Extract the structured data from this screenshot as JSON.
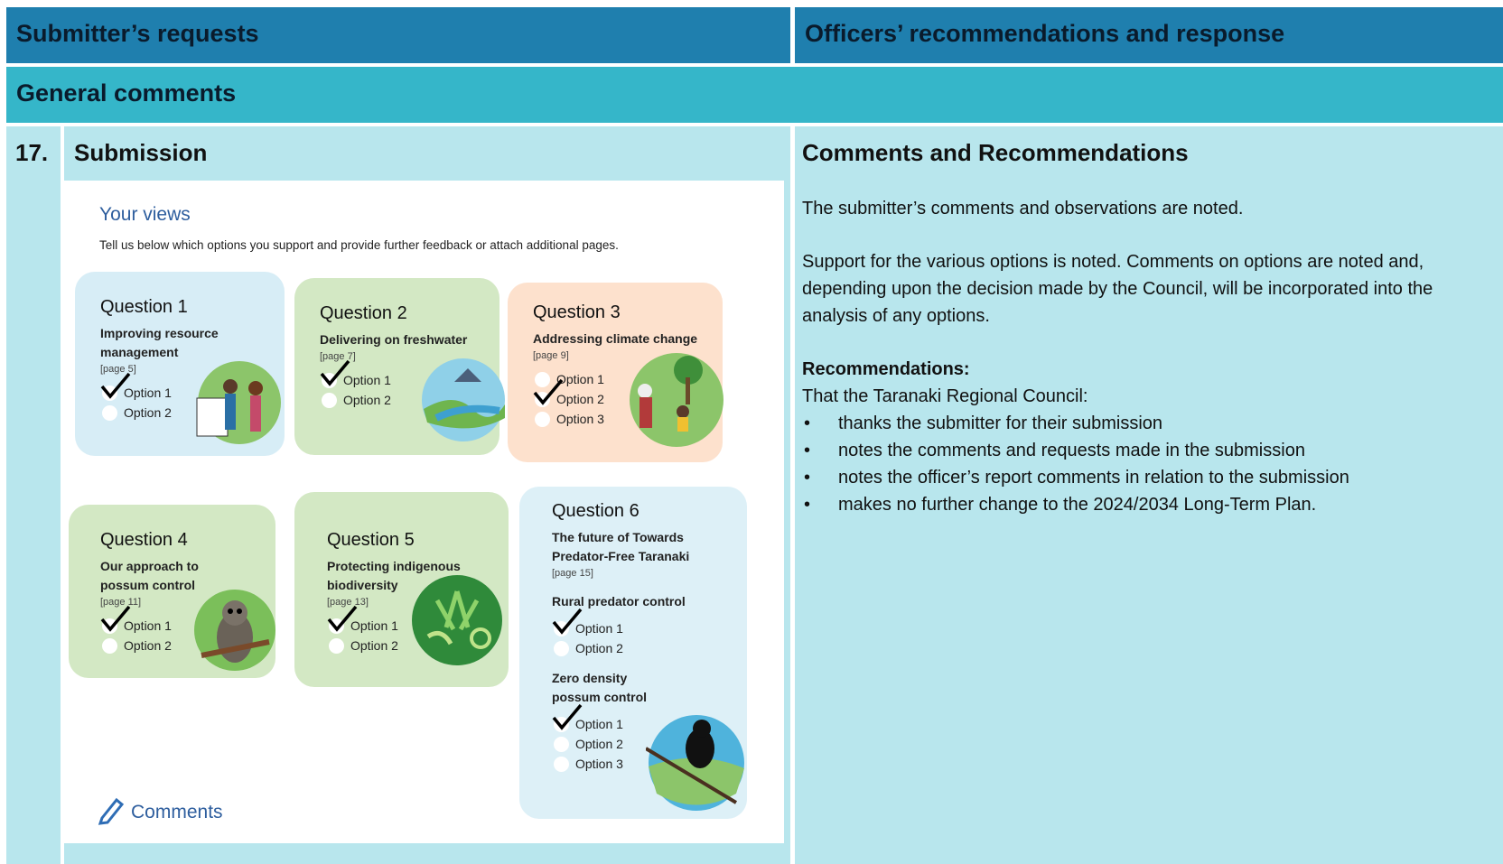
{
  "header": {
    "left": "Submitter’s requests",
    "right": "Officers’ recommendations and response"
  },
  "section": "General comments",
  "row": {
    "number": "17.",
    "left_title": "Submission",
    "form": {
      "title": "Your views",
      "intro": "Tell us below which options you support and provide further feedback or attach additional pages.",
      "questions": [
        {
          "title": "Question 1",
          "subtitle": "Improving resource management",
          "page": "[page 5]",
          "options": [
            "Option 1",
            "Option 2"
          ]
        },
        {
          "title": "Question 2",
          "subtitle": "Delivering on freshwater",
          "page": "[page 7]",
          "options": [
            "Option 1",
            "Option 2"
          ]
        },
        {
          "title": "Question 3",
          "subtitle": "Addressing climate change",
          "page": "[page 9]",
          "options": [
            "Option 1",
            "Option 2",
            "Option 3"
          ]
        },
        {
          "title": "Question 4",
          "subtitle": "Our approach to possum control",
          "page": "[page 11]",
          "options": [
            "Option 1",
            "Option 2"
          ]
        },
        {
          "title": "Question 5",
          "subtitle": "Protecting indigenous biodiversity",
          "page": "[page 13]",
          "options": [
            "Option 1",
            "Option 2"
          ]
        },
        {
          "title": "Question 6",
          "subtitle": "The future of Towards Predator-Free Taranaki",
          "page": "[page 15]",
          "parts": [
            {
              "label": "Rural predator control",
              "options": [
                "Option 1",
                "Option 2"
              ]
            },
            {
              "label": "Zero density possum control",
              "options": [
                "Option 1",
                "Option 2",
                "Option 3"
              ]
            }
          ]
        }
      ],
      "comments": "Comments"
    },
    "right_title": "Comments and Recommendations",
    "paragraphs": [
      "The submitter’s comments and observations are noted.",
      "Support for the various options is noted. Comments on options are noted and, depending upon the decision made by the Council, will be incorporated into the analysis of any options."
    ],
    "recommendations": {
      "heading": "Recommendations:",
      "lead": "That the Taranaki Regional Council:",
      "items": [
        "thanks the submitter for their submission",
        "notes the comments and requests made in the submission",
        "notes the officer’s report comments in relation to the submission",
        "makes no further change to the 2024/2034 Long-Term Plan."
      ]
    }
  }
}
